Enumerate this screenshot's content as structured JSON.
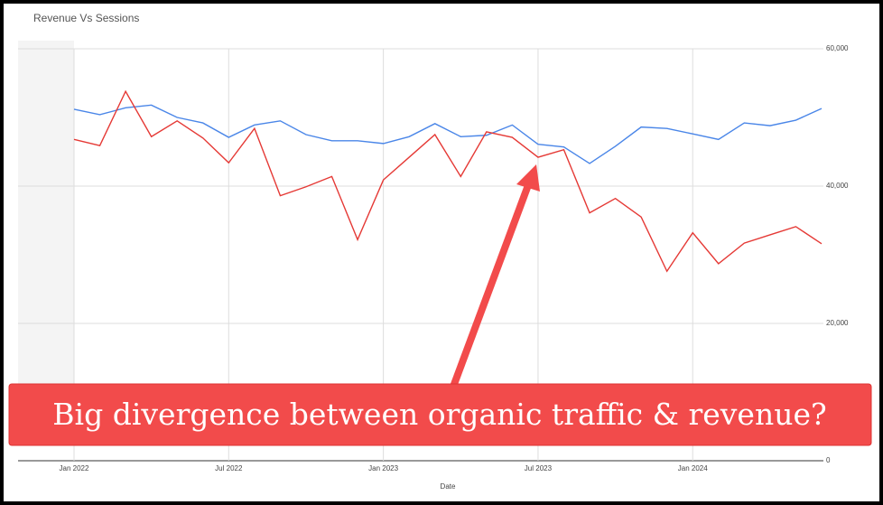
{
  "chart_data": {
    "type": "line",
    "title": "Revenue Vs Sessions",
    "x_label": "Date",
    "annotation": "Big divergence between organic traffic &  revenue?",
    "categories": [
      "Jan 2022",
      null,
      null,
      null,
      null,
      null,
      "Jul 2022",
      null,
      null,
      null,
      null,
      null,
      "Jan 2023",
      null,
      null,
      null,
      null,
      null,
      "Jul 2023",
      null,
      null,
      null,
      null,
      null,
      "Jan 2024",
      null,
      null,
      null,
      null,
      null
    ],
    "series": [
      {
        "color": "#4a86e8",
        "values": [
          51200,
          50400,
          51400,
          51800,
          50000,
          49200,
          47100,
          48900,
          49500,
          47500,
          46600,
          46600,
          46200,
          47200,
          49100,
          47200,
          47400,
          48900,
          46100,
          45700,
          43300,
          45800,
          48600,
          48400,
          47600,
          46800,
          49200,
          48800,
          49600,
          51300
        ]
      },
      {
        "color": "#e53935",
        "values": [
          46800,
          45900,
          53800,
          47200,
          49500,
          47000,
          43400,
          48400,
          38600,
          39900,
          41400,
          32200,
          40900,
          44200,
          47500,
          41400,
          47900,
          47100,
          44200,
          45300,
          36100,
          38200,
          35500,
          27600,
          33200,
          28700,
          31700,
          32900,
          34100,
          31600
        ]
      }
    ],
    "ylim": [
      0,
      60000
    ],
    "yticks": [
      0,
      {
        "value": 20000,
        "label": "20,000"
      },
      {
        "value": 40000,
        "label": "40,000"
      },
      {
        "value": 60000,
        "label": "60,000"
      }
    ],
    "grid": true
  }
}
